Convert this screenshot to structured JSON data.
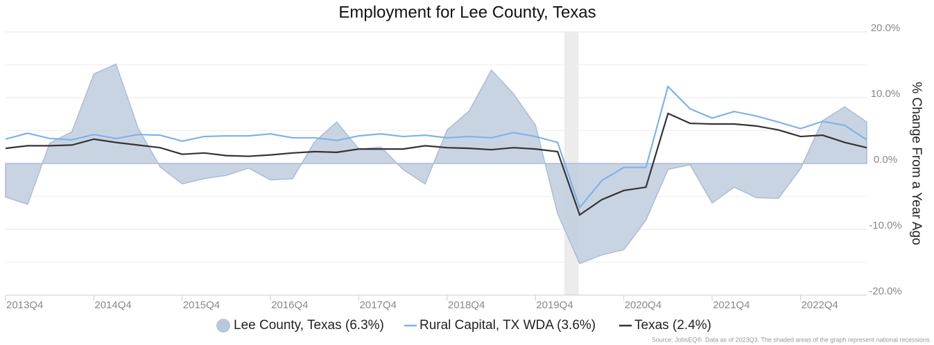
{
  "chart_data": {
    "type": "line",
    "title": "Employment for Lee County, Texas",
    "y_axis_label": "% Change From a Year Ago",
    "source": "Source: JobsEQ®. Data as of 2023Q3. The shaded areas of the graph represent national recessions.",
    "categories": [
      "2013Q4",
      null,
      null,
      null,
      "2014Q4",
      null,
      null,
      null,
      "2015Q4",
      null,
      null,
      null,
      "2016Q4",
      null,
      null,
      null,
      "2017Q4",
      null,
      null,
      null,
      "2018Q4",
      null,
      null,
      null,
      "2019Q4",
      null,
      null,
      null,
      "2020Q4",
      null,
      null,
      null,
      "2021Q4",
      null,
      null,
      null,
      "2022Q4",
      null,
      null,
      null
    ],
    "series": [
      {
        "name": "Lee County, Texas (6.3%)",
        "kind": "area",
        "color": "#c3cfe0",
        "values": [
          -5.1,
          -6.2,
          3.1,
          4.8,
          13.6,
          15.1,
          5.4,
          -0.5,
          -3.1,
          -2.3,
          -1.8,
          -0.7,
          -2.5,
          -2.3,
          3.3,
          6.3,
          2.2,
          2.5,
          -0.9,
          -3.1,
          5.1,
          8.0,
          14.2,
          10.6,
          5.8,
          -7.6,
          -15.2,
          -13.9,
          -13.1,
          -8.6,
          -0.9,
          -0.2,
          -6.0,
          -3.6,
          -5.2,
          -5.3,
          -0.8,
          6.5,
          8.6,
          6.3
        ]
      },
      {
        "name": "Rural Capital, TX WDA (3.6%)",
        "kind": "line",
        "color": "#7db3e8",
        "values": [
          3.7,
          4.6,
          3.8,
          3.6,
          4.4,
          3.8,
          4.4,
          4.3,
          3.4,
          4.1,
          4.2,
          4.2,
          4.5,
          3.9,
          3.9,
          3.5,
          4.2,
          4.5,
          4.1,
          4.3,
          3.9,
          4.1,
          3.9,
          4.7,
          4.1,
          3.2,
          -6.7,
          -2.6,
          -0.6,
          -0.6,
          11.7,
          8.3,
          6.9,
          7.9,
          7.2,
          6.3,
          5.3,
          6.4,
          5.8,
          3.6
        ]
      },
      {
        "name": "Texas (2.4%)",
        "kind": "line",
        "color": "#333333",
        "values": [
          2.3,
          2.7,
          2.7,
          2.8,
          3.7,
          3.2,
          2.8,
          2.4,
          1.4,
          1.6,
          1.2,
          1.1,
          1.3,
          1.6,
          1.8,
          1.7,
          2.2,
          2.2,
          2.2,
          2.7,
          2.4,
          2.3,
          2.1,
          2.4,
          2.2,
          1.8,
          -7.8,
          -5.5,
          -4.1,
          -3.6,
          7.6,
          6.1,
          6.0,
          6.0,
          5.7,
          5.1,
          4.1,
          4.3,
          3.2,
          2.4
        ]
      }
    ],
    "recession": [
      25.3,
      25.95
    ],
    "ylim": [
      -20,
      20
    ],
    "yticks": [
      {
        "value": -20,
        "label": "-20.0%"
      },
      {
        "value": -10,
        "label": "-10.0%"
      },
      {
        "value": 0,
        "label": "0.0%"
      },
      {
        "value": 10,
        "label": "10.0%"
      },
      {
        "value": 20,
        "label": "20.0%"
      }
    ],
    "yminorticks": [
      -15,
      -5,
      5,
      15
    ],
    "grid": true,
    "y_axis_side": "right",
    "legend": "bottom"
  }
}
